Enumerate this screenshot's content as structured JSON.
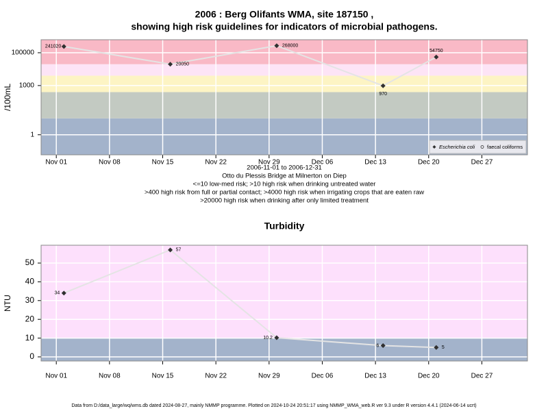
{
  "chart_data": [
    {
      "type": "line",
      "title": [
        "2006 : Berg Olifants WMA, site 187150 ,",
        "showing high risk guidelines for indicators of microbial pathogens."
      ],
      "ylabel": "/100mL",
      "log_y": true,
      "grid": true,
      "legend": "bottom-right",
      "x": [
        "Nov 02",
        "Nov 16",
        "Nov 30",
        "Dec 14",
        "Dec 21"
      ],
      "xlim": [
        "Oct 30",
        "Jan 02"
      ],
      "xticks": [
        "Nov 01",
        "Nov 08",
        "Nov 15",
        "Nov 22",
        "Nov 29",
        "Dec 06",
        "Dec 13",
        "Dec 20",
        "Dec 27"
      ],
      "ylim": [
        0.06,
        620000
      ],
      "yticks": [
        1,
        1000,
        100000
      ],
      "bands": {
        "thresholds": [
          10,
          400,
          4000,
          20000
        ],
        "colors": [
          "#a3b3cb",
          "#c3cac2",
          "#fdf4c4",
          "#fde4f6",
          "#f9b9c6"
        ]
      },
      "series": [
        {
          "name": "Escherichia coli",
          "color": "#303030",
          "marker": "diamond",
          "values": [
            241020,
            20050,
            268000,
            970,
            54750
          ]
        },
        {
          "name": "faecal coliforms",
          "color": "#303030",
          "marker": "circle",
          "values": [
            null,
            null,
            null,
            null,
            null
          ]
        }
      ],
      "notes": [
        "2006-11-01 to 2006-12-31",
        "Otto du Plessis Bridge at Milnerton on Diep",
        "<=10 low-med risk; >10 high risk when drinking untreated water",
        ">400 high risk from full or partial contact; >4000 high risk when irrigating crops that are eaten raw",
        ">20000 high risk when drinking after only limited treatment"
      ]
    },
    {
      "type": "line",
      "title": [
        "Turbidity"
      ],
      "ylabel": "NTU",
      "log_y": false,
      "grid": true,
      "x": [
        "Nov 02",
        "Nov 16",
        "Nov 30",
        "Dec 14",
        "Dec 21"
      ],
      "xlim": [
        "Oct 30",
        "Jan 02"
      ],
      "xticks": [
        "Nov 01",
        "Nov 08",
        "Nov 15",
        "Nov 22",
        "Nov 29",
        "Dec 06",
        "Dec 13",
        "Dec 20",
        "Dec 27"
      ],
      "ylim": [
        -2.2,
        59.5
      ],
      "yticks": [
        0,
        10,
        20,
        30,
        40,
        50
      ],
      "bands": {
        "thresholds": [
          10
        ],
        "colors": [
          "#a3b3cb",
          "#fde0fc"
        ]
      },
      "series": [
        {
          "name": "Turbidity",
          "color": "#303030",
          "marker": "diamond",
          "values": [
            34,
            57,
            10.2,
            6,
            5
          ]
        }
      ]
    }
  ],
  "footer": "Data from D:/data_large/wq/wms.db dated 2024-08-27, mainly NMMP programme. Plotted on 2024-10-24 20:51:17 using NMMP_WMA_web.R ver 9.3 under R version 4.4.1 (2024-06-14 ucrt)"
}
